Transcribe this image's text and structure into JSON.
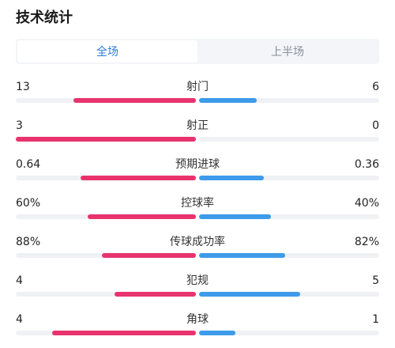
{
  "title": "技术统计",
  "tabs": [
    {
      "label": "全场",
      "active": true
    },
    {
      "label": "上半场",
      "active": false
    }
  ],
  "colors": {
    "home": "#e8336e",
    "away": "#3d9bea",
    "track": "#f0f1f4",
    "active_tab": "#2e7bd8"
  },
  "stats": [
    {
      "label": "射门",
      "home": "13",
      "away": "6",
      "home_share": 0.68,
      "away_share": 0.32
    },
    {
      "label": "射正",
      "home": "3",
      "away": "0",
      "home_share": 1.0,
      "away_share": 0.0
    },
    {
      "label": "预期进球",
      "home": "0.64",
      "away": "0.36",
      "home_share": 0.64,
      "away_share": 0.36
    },
    {
      "label": "控球率",
      "home": "60%",
      "away": "40%",
      "home_share": 0.6,
      "away_share": 0.4
    },
    {
      "label": "传球成功率",
      "home": "88%",
      "away": "82%",
      "home_share": 0.52,
      "away_share": 0.48
    },
    {
      "label": "犯规",
      "home": "4",
      "away": "5",
      "home_share": 0.45,
      "away_share": 0.56
    },
    {
      "label": "角球",
      "home": "4",
      "away": "1",
      "home_share": 0.8,
      "away_share": 0.2
    }
  ]
}
